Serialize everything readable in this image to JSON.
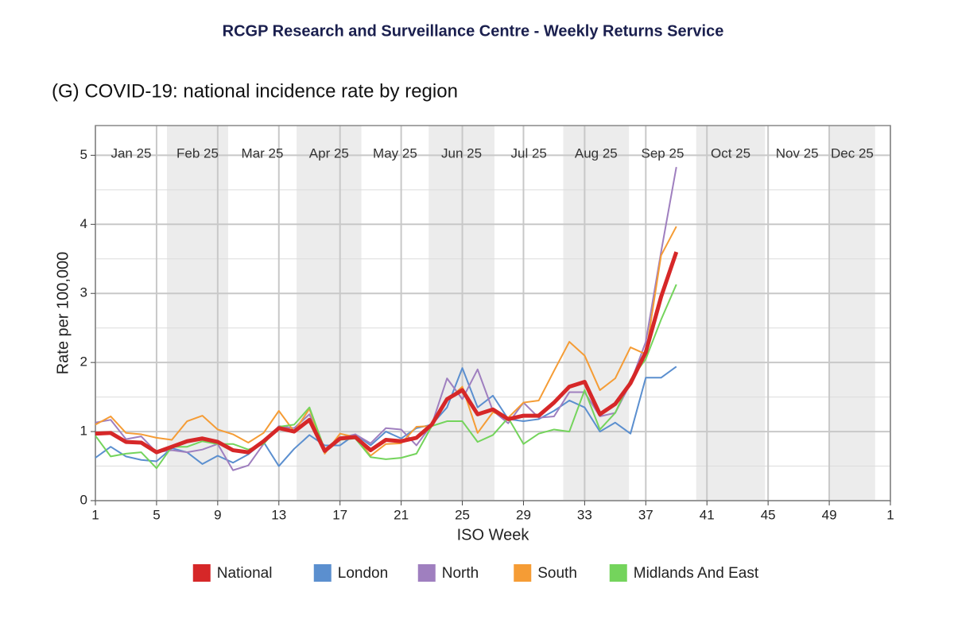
{
  "header": {
    "title": "RCGP Research and Surveillance Centre - Weekly Returns Service"
  },
  "chart_data": {
    "type": "line",
    "title": "(G) COVID-19: national incidence rate by region",
    "x_label": "ISO Week",
    "y_label": "Rate per 100,000",
    "x": [
      1,
      2,
      3,
      4,
      5,
      6,
      7,
      8,
      9,
      10,
      11,
      12,
      13,
      14,
      15,
      16,
      17,
      18,
      19,
      20,
      21,
      22,
      23,
      24,
      25,
      26,
      27,
      28,
      29,
      30,
      31,
      32,
      33,
      34,
      35,
      36,
      37,
      38,
      39
    ],
    "series": [
      {
        "name": "London",
        "color": "#5b8fcf",
        "values": [
          0.62,
          0.78,
          0.64,
          0.59,
          0.57,
          0.76,
          0.7,
          0.53,
          0.65,
          0.55,
          0.67,
          0.85,
          0.5,
          0.75,
          0.95,
          0.8,
          0.8,
          0.96,
          0.8,
          1.0,
          0.9,
          1.05,
          1.1,
          1.35,
          1.92,
          1.35,
          1.52,
          1.18,
          1.15,
          1.18,
          1.3,
          1.45,
          1.35,
          1.0,
          1.13,
          0.97,
          1.78,
          1.78,
          1.94
        ]
      },
      {
        "name": "North",
        "color": "#9f7fbf",
        "values": [
          1.13,
          1.17,
          0.89,
          0.93,
          0.7,
          0.73,
          0.7,
          0.74,
          0.82,
          0.44,
          0.51,
          0.82,
          1.08,
          1.05,
          1.25,
          0.72,
          0.91,
          0.96,
          0.83,
          1.05,
          1.03,
          0.8,
          1.1,
          1.77,
          1.47,
          1.9,
          1.3,
          1.12,
          1.42,
          1.2,
          1.22,
          1.57,
          1.57,
          1.22,
          1.27,
          1.7,
          2.3,
          3.6,
          4.83
        ]
      },
      {
        "name": "South",
        "color": "#f59c35",
        "values": [
          1.1,
          1.22,
          0.98,
          0.96,
          0.91,
          0.88,
          1.15,
          1.23,
          1.03,
          0.96,
          0.84,
          0.98,
          1.3,
          1.0,
          1.33,
          0.68,
          0.97,
          0.92,
          0.65,
          0.82,
          0.83,
          1.07,
          1.08,
          1.45,
          1.65,
          0.98,
          1.28,
          1.2,
          1.42,
          1.45,
          1.88,
          2.3,
          2.1,
          1.6,
          1.77,
          2.22,
          2.12,
          3.55,
          3.97
        ]
      },
      {
        "name": "Midlands And East",
        "color": "#74d45c",
        "values": [
          0.94,
          0.64,
          0.68,
          0.7,
          0.47,
          0.78,
          0.78,
          0.86,
          0.82,
          0.82,
          0.74,
          0.82,
          1.07,
          1.1,
          1.35,
          0.74,
          0.88,
          0.9,
          0.63,
          0.6,
          0.62,
          0.68,
          1.08,
          1.15,
          1.15,
          0.85,
          0.95,
          1.2,
          0.82,
          0.97,
          1.03,
          1.0,
          1.6,
          1.03,
          1.27,
          1.75,
          2.05,
          2.62,
          3.13
        ]
      },
      {
        "name": "National",
        "color": "#d62728",
        "values": [
          0.97,
          0.98,
          0.85,
          0.84,
          0.7,
          0.78,
          0.86,
          0.9,
          0.85,
          0.73,
          0.7,
          0.86,
          1.05,
          1.0,
          1.17,
          0.72,
          0.9,
          0.92,
          0.73,
          0.88,
          0.86,
          0.91,
          1.1,
          1.47,
          1.6,
          1.25,
          1.32,
          1.18,
          1.23,
          1.23,
          1.42,
          1.65,
          1.72,
          1.25,
          1.4,
          1.7,
          2.15,
          2.95,
          3.6
        ]
      }
    ],
    "legend_order": [
      4,
      0,
      1,
      2,
      3
    ],
    "legend": "bottom",
    "xlim": [
      1,
      53
    ],
    "xticks": [
      1,
      5,
      9,
      13,
      17,
      21,
      25,
      29,
      33,
      37,
      41,
      45,
      49,
      {
        "value": 53,
        "label": "1"
      }
    ],
    "ylim": [
      0,
      5.43
    ],
    "yticks": [
      0,
      1,
      2,
      3,
      4,
      5
    ],
    "grid": true,
    "months": [
      {
        "label": "Jan 25",
        "start": 1,
        "end": 5.68
      },
      {
        "label": "Feb 25",
        "start": 5.68,
        "end": 9.68
      },
      {
        "label": "Mar 25",
        "start": 9.68,
        "end": 14.16
      },
      {
        "label": "Apr 25",
        "start": 14.16,
        "end": 18.4
      },
      {
        "label": "May 25",
        "start": 18.4,
        "end": 22.8
      },
      {
        "label": "Jun 25",
        "start": 22.8,
        "end": 27.1
      },
      {
        "label": "Jul 25",
        "start": 27.1,
        "end": 31.6
      },
      {
        "label": "Aug 25",
        "start": 31.6,
        "end": 35.9
      },
      {
        "label": "Sep 25",
        "start": 35.9,
        "end": 40.3
      },
      {
        "label": "Oct 25",
        "start": 40.3,
        "end": 44.8
      },
      {
        "label": "Nov 25",
        "start": 44.8,
        "end": 49.0
      },
      {
        "label": "Dec 25",
        "start": 49.0,
        "end": 52.0
      }
    ]
  }
}
